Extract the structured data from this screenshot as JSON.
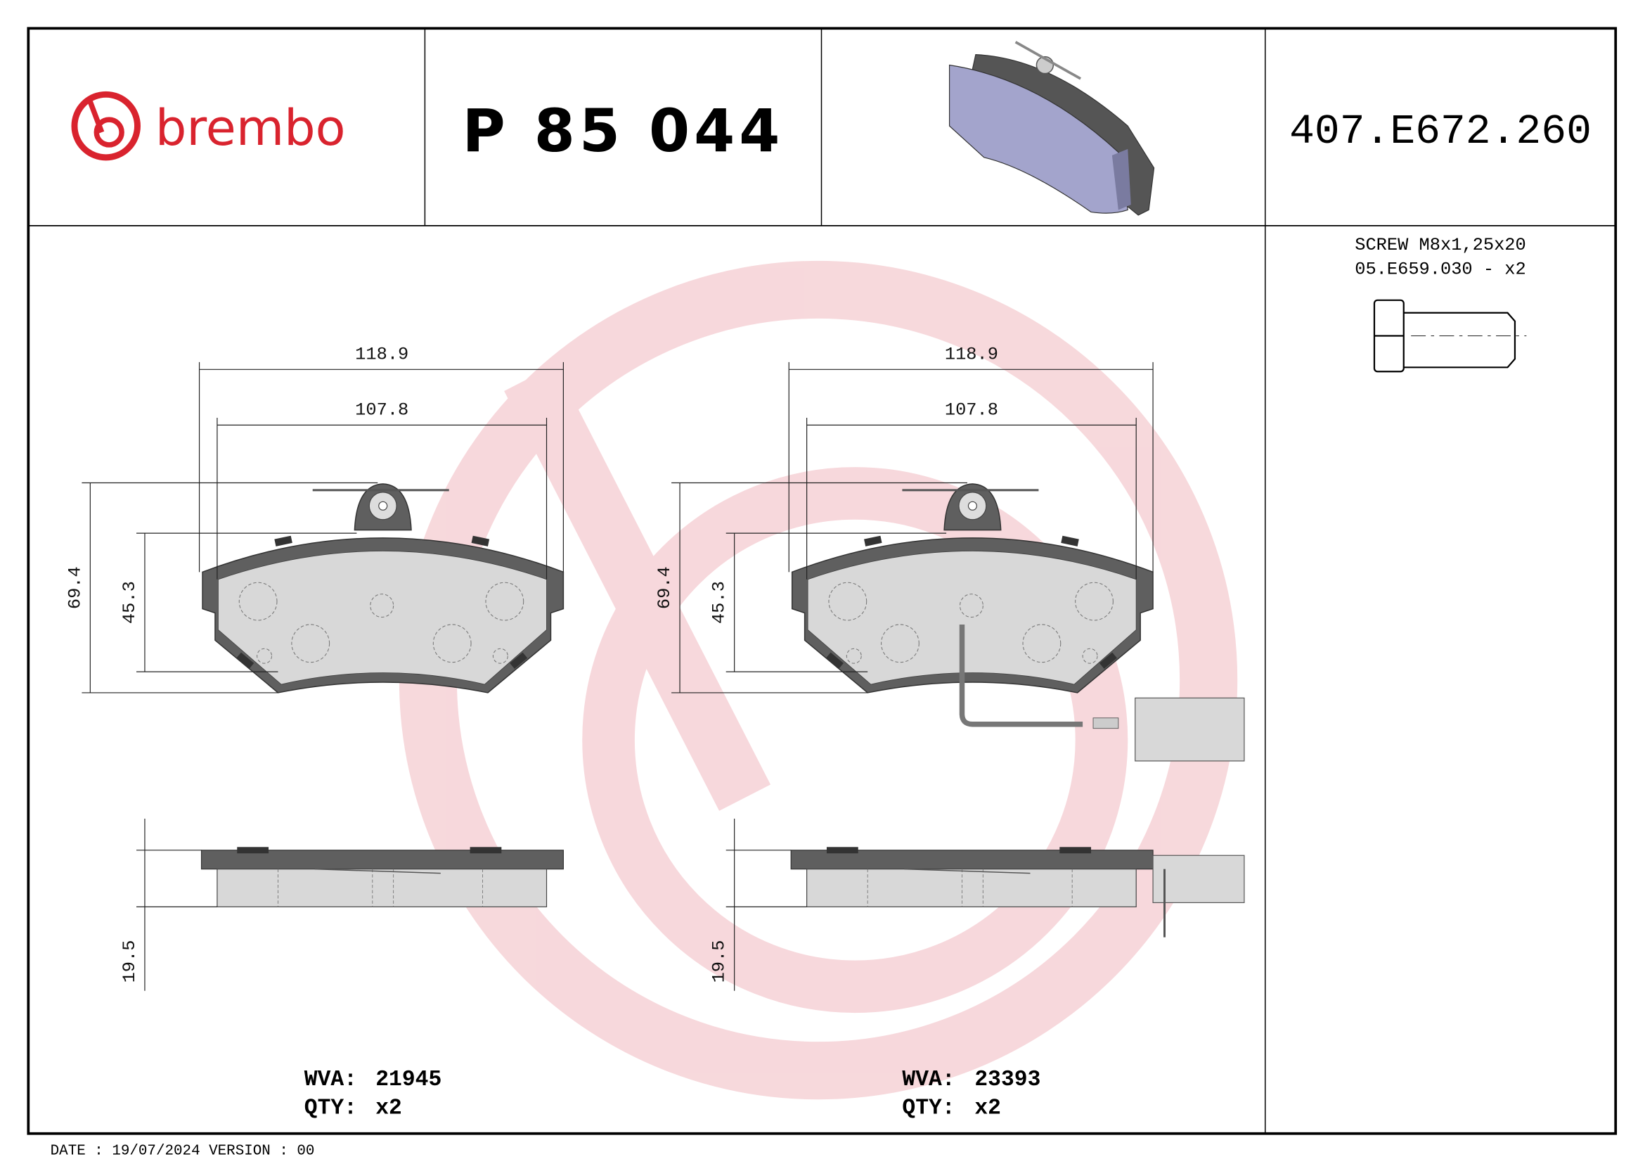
{
  "header": {
    "brand": "brembo",
    "brand_color": "#d9232e",
    "part_number": "P 85 044",
    "reference_code": "407.E672.260"
  },
  "accessory": {
    "line1": "SCREW M8x1,25x20",
    "line2": "05.E659.030 - x2",
    "icon": "screw-icon"
  },
  "dimensions": {
    "overall_width": "118.9",
    "friction_width": "107.8",
    "overall_height": "69.4",
    "friction_height": "45.3",
    "thickness": "19.5"
  },
  "variants": [
    {
      "wva_label": "WVA:",
      "wva": "21945",
      "qty_label": "QTY:",
      "qty": "x2"
    },
    {
      "wva_label": "WVA:",
      "wva": "23393",
      "qty_label": "QTY:",
      "qty": "x2"
    }
  ],
  "footer": {
    "text": "DATE : 19/07/2024 VERSION : 00"
  },
  "colors": {
    "backplate": "#5f5f5f",
    "friction": "#d8d8d8",
    "pad_3d": "#a3a4cc",
    "watermark": "#f3c4c9"
  }
}
